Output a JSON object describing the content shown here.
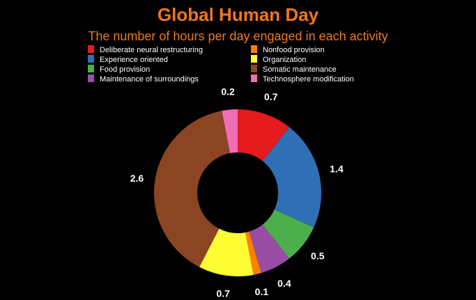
{
  "chart_data": {
    "type": "pie",
    "donut": true,
    "title": "Global Human Day",
    "subtitle": "The number of hours per day engaged in each activity",
    "legend_position": "top",
    "legend": [
      {
        "label": "Deliberate neural restructuring",
        "color": "#e41a1c"
      },
      {
        "label": "Nonfood provision",
        "color": "#ff7f00"
      },
      {
        "label": "Experience oriented",
        "color": "#2f6fb5"
      },
      {
        "label": "Organization",
        "color": "#ffff33"
      },
      {
        "label": "Food provision",
        "color": "#4daf4a"
      },
      {
        "label": "Somatic maintenance",
        "color": "#8b4522"
      },
      {
        "label": "Maintenance of surroundings",
        "color": "#984ea3"
      },
      {
        "label": "Technosphere modification",
        "color": "#f06eb5"
      }
    ],
    "slices": [
      {
        "category": "Deliberate neural restructuring",
        "value": 0.7,
        "label": "0.7",
        "color": "#e41a1c"
      },
      {
        "category": "Experience oriented",
        "value": 1.4,
        "label": "1.4",
        "color": "#2f6fb5"
      },
      {
        "category": "Food provision",
        "value": 0.5,
        "label": "0.5",
        "color": "#4daf4a"
      },
      {
        "category": "Maintenance of surroundings",
        "value": 0.4,
        "label": "0.4",
        "color": "#984ea3"
      },
      {
        "category": "Nonfood provision",
        "value": 0.1,
        "label": "0.1",
        "color": "#ff7f00"
      },
      {
        "category": "Organization",
        "value": 0.7,
        "label": "0.7",
        "color": "#ffff33"
      },
      {
        "category": "Somatic maintenance",
        "value": 2.6,
        "label": "2.6",
        "color": "#8b4522"
      },
      {
        "category": "Technosphere modification",
        "value": 0.2,
        "label": "0.2",
        "color": "#f06eb5"
      }
    ]
  }
}
